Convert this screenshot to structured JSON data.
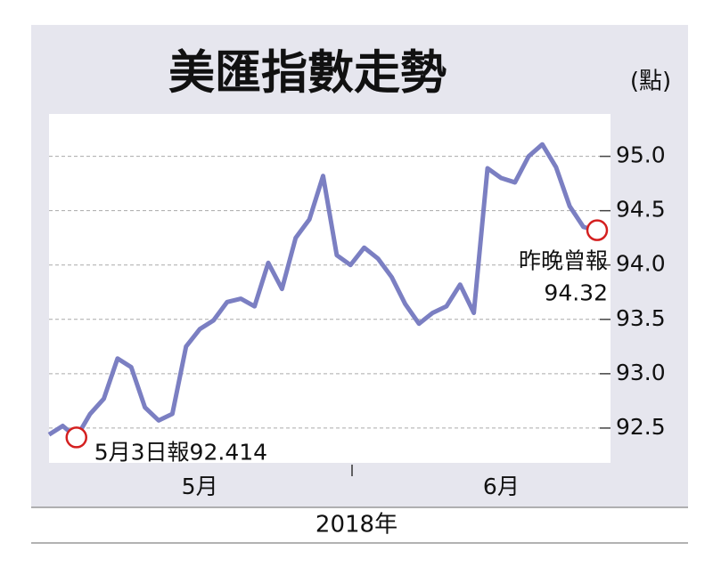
{
  "chart_data": {
    "type": "line",
    "title": "美匯指數走勢",
    "y_axis_label": "(點)",
    "x_axis_label": "2018年",
    "categories": [
      null,
      null,
      null,
      null,
      null,
      null,
      null,
      null,
      null,
      null,
      null,
      "5月",
      null,
      null,
      null,
      null,
      null,
      null,
      null,
      null,
      null,
      null,
      null,
      null,
      null,
      null,
      null,
      null,
      null,
      null,
      null,
      null,
      null,
      "6月",
      null,
      null,
      null,
      null,
      null,
      null,
      null
    ],
    "series": [
      {
        "name": "美匯指數",
        "color": "#7b7fc2",
        "values": [
          92.44,
          92.52,
          92.414,
          92.63,
          92.77,
          93.14,
          93.06,
          92.69,
          92.57,
          92.63,
          93.25,
          93.41,
          93.49,
          93.66,
          93.69,
          93.62,
          94.02,
          93.78,
          94.25,
          94.42,
          94.82,
          94.09,
          94.0,
          94.16,
          94.06,
          93.89,
          93.64,
          93.46,
          93.56,
          93.62,
          93.82,
          93.56,
          94.89,
          94.8,
          94.76,
          95.0,
          95.11,
          94.9,
          94.54,
          94.35,
          94.32
        ]
      }
    ],
    "annotations": [
      "5月3日報92.414",
      "昨晚曾報",
      "94.32"
    ],
    "ylim": [
      92.18,
      95.39
    ],
    "yticks": [
      {
        "value": 92.5,
        "label": "92.5"
      },
      {
        "value": 93,
        "label": "93.0"
      },
      {
        "value": 93.5,
        "label": "93.5"
      },
      {
        "value": 94,
        "label": "94.0"
      },
      {
        "value": 94.5,
        "label": "94.5"
      },
      {
        "value": 95,
        "label": "95.0"
      }
    ],
    "grid": true
  }
}
